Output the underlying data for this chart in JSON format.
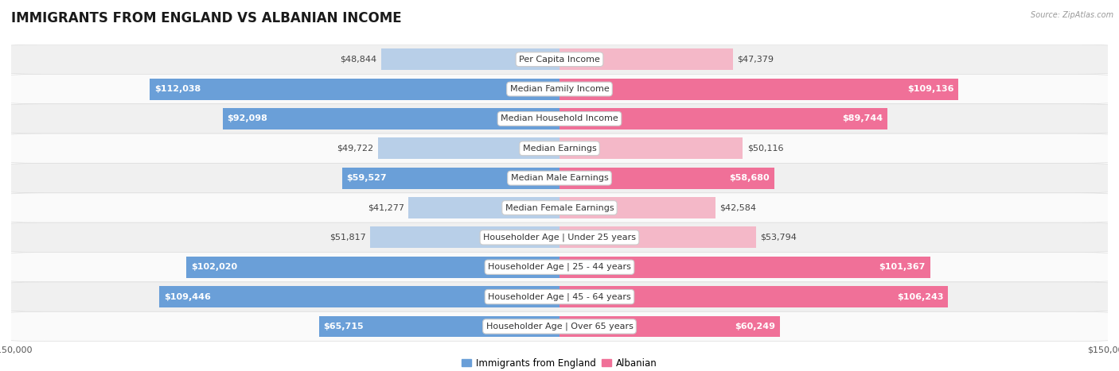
{
  "title": "IMMIGRANTS FROM ENGLAND VS ALBANIAN INCOME",
  "source": "Source: ZipAtlas.com",
  "categories": [
    "Per Capita Income",
    "Median Family Income",
    "Median Household Income",
    "Median Earnings",
    "Median Male Earnings",
    "Median Female Earnings",
    "Householder Age | Under 25 years",
    "Householder Age | 25 - 44 years",
    "Householder Age | 45 - 64 years",
    "Householder Age | Over 65 years"
  ],
  "england_values": [
    48844,
    112038,
    92098,
    49722,
    59527,
    41277,
    51817,
    102020,
    109446,
    65715
  ],
  "albanian_values": [
    47379,
    109136,
    89744,
    50116,
    58680,
    42584,
    53794,
    101367,
    106243,
    60249
  ],
  "england_labels": [
    "$48,844",
    "$112,038",
    "$92,098",
    "$49,722",
    "$59,527",
    "$41,277",
    "$51,817",
    "$102,020",
    "$109,446",
    "$65,715"
  ],
  "albanian_labels": [
    "$47,379",
    "$109,136",
    "$89,744",
    "$50,116",
    "$58,680",
    "$42,584",
    "$53,794",
    "$101,367",
    "$106,243",
    "$60,249"
  ],
  "max_value": 150000,
  "england_color_light": "#b8cfe8",
  "england_color_dark": "#6a9fd8",
  "albanian_color_light": "#f4b8c8",
  "albanian_color_dark": "#f07098",
  "inside_threshold": 55000,
  "bar_height": 0.72,
  "row_bg_odd": "#f0f0f0",
  "row_bg_even": "#fafafa",
  "row_border_color": "#dddddd",
  "background_color": "#ffffff",
  "title_fontsize": 12,
  "label_fontsize": 8,
  "category_fontsize": 8,
  "legend_fontsize": 8.5,
  "axis_tick_fontsize": 8
}
